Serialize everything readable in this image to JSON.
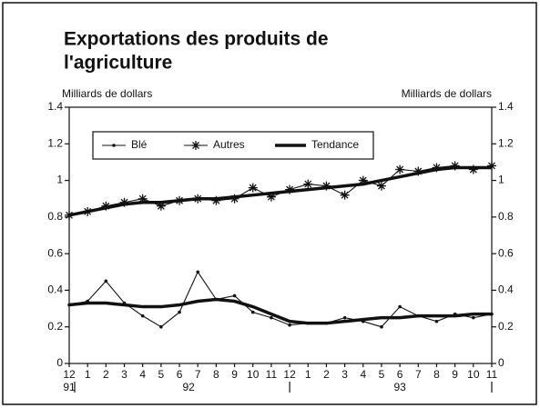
{
  "chart_data": {
    "type": "line",
    "title": [
      "Exportations des produits de",
      "l'agriculture"
    ],
    "y_label": "Milliards de dollars",
    "y2_label": "Milliards de dollars",
    "categories": [
      "12",
      "1",
      "2",
      "3",
      "4",
      "5",
      "6",
      "7",
      "8",
      "9",
      "10",
      "11",
      "12",
      "1",
      "2",
      "3",
      "4",
      "5",
      "6",
      "7",
      "8",
      "9",
      "10",
      "11"
    ],
    "year_labels": [
      "91",
      "92",
      "93"
    ],
    "ylim": [
      0,
      1.4
    ],
    "yticks": [
      0,
      0.2,
      0.4,
      0.6,
      0.8,
      1,
      1.2,
      1.4
    ],
    "y2lim": [
      0,
      1.4
    ],
    "y2ticks": [
      0,
      0.2,
      0.4,
      0.6,
      0.8,
      1,
      1.2,
      1.4
    ],
    "trend_name": "Tendance",
    "series": [
      {
        "name": "Blé",
        "color": "#111",
        "marker": "dot",
        "values": [
          0.32,
          0.34,
          0.45,
          0.33,
          0.26,
          0.2,
          0.28,
          0.5,
          0.35,
          0.37,
          0.28,
          0.25,
          0.21,
          0.22,
          0.22,
          0.25,
          0.23,
          0.2,
          0.31,
          0.26,
          0.23,
          0.27,
          0.25,
          0.27
        ],
        "trend": [
          0.32,
          0.33,
          0.33,
          0.32,
          0.31,
          0.31,
          0.32,
          0.34,
          0.35,
          0.34,
          0.31,
          0.27,
          0.23,
          0.22,
          0.22,
          0.23,
          0.24,
          0.25,
          0.25,
          0.26,
          0.26,
          0.26,
          0.27,
          0.27
        ]
      },
      {
        "name": "Autres",
        "color": "#111",
        "marker": "star",
        "values": [
          0.81,
          0.83,
          0.86,
          0.88,
          0.9,
          0.86,
          0.89,
          0.9,
          0.89,
          0.9,
          0.96,
          0.91,
          0.95,
          0.98,
          0.97,
          0.92,
          1.0,
          0.97,
          1.06,
          1.05,
          1.07,
          1.08,
          1.06,
          1.08
        ],
        "trend": [
          0.81,
          0.83,
          0.85,
          0.87,
          0.88,
          0.88,
          0.89,
          0.9,
          0.9,
          0.91,
          0.92,
          0.93,
          0.94,
          0.95,
          0.96,
          0.97,
          0.98,
          1.0,
          1.02,
          1.04,
          1.06,
          1.07,
          1.07,
          1.07
        ]
      }
    ]
  }
}
